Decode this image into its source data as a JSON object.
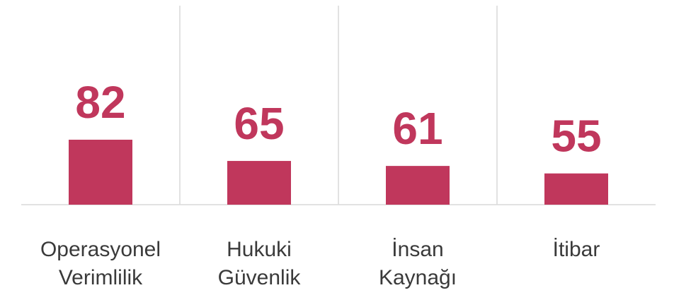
{
  "chart_data": {
    "type": "bar",
    "categories": [
      "Operasyonel Verimlilik",
      "Hukuki Güvenlik",
      "İnsan Kaynağı",
      "İtibar"
    ],
    "values": [
      82,
      65,
      61,
      55
    ],
    "color": "#c0375c",
    "ylim": [
      30,
      130
    ]
  }
}
